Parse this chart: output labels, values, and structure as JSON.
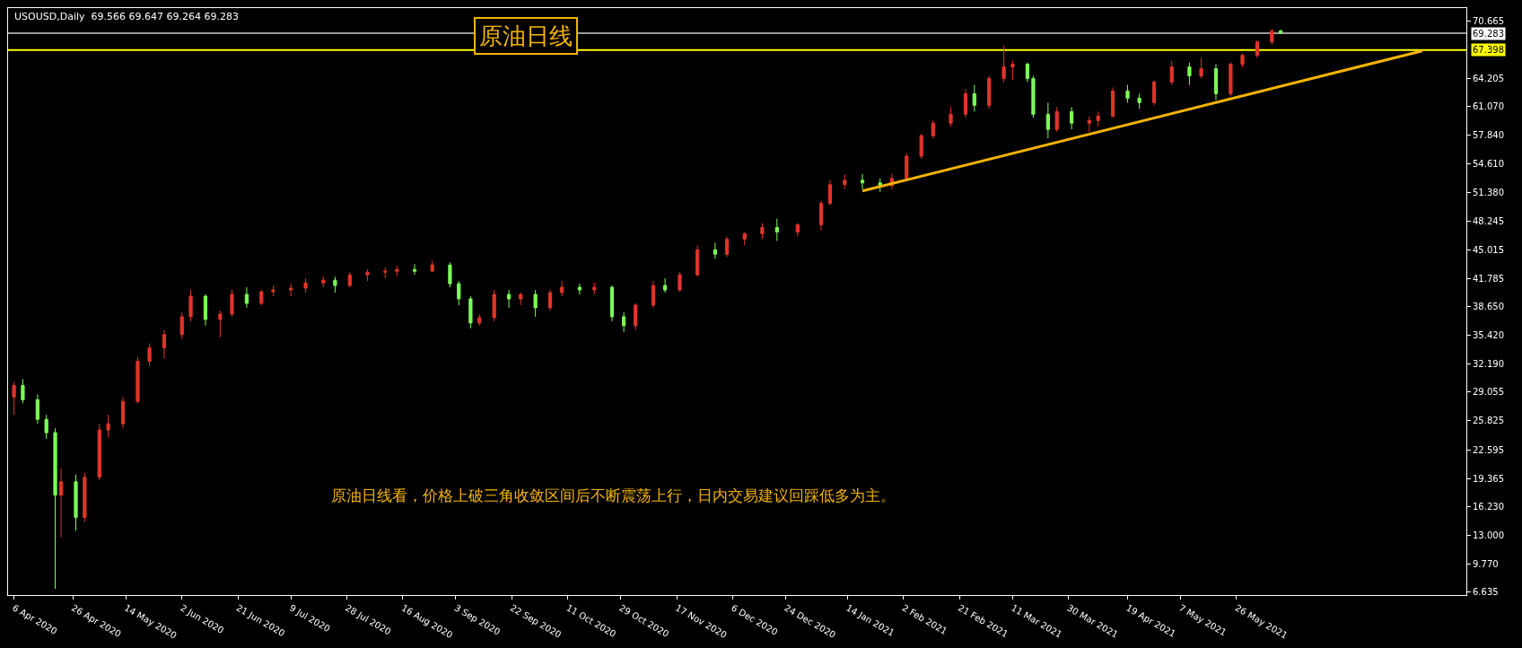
{
  "chart_data": {
    "type": "candlestick",
    "title": "原油日线",
    "subtitle": "USOUSD,Daily  69.566 69.647 69.264 69.283",
    "annotations": [
      "原油日线看，价格上破三角收敛区间后不断震荡上行，日内交易建议回踩低多为主。"
    ],
    "x": [
      "2020-04-06",
      "2020-04-09",
      "2020-04-14",
      "2020-04-17",
      "2020-04-20",
      "2020-04-22",
      "2020-04-27",
      "2020-04-30",
      "2020-05-05",
      "2020-05-08",
      "2020-05-13",
      "2020-05-18",
      "2020-05-22",
      "2020-05-27",
      "2020-06-02",
      "2020-06-05",
      "2020-06-10",
      "2020-06-15",
      "2020-06-19",
      "2020-06-24",
      "2020-06-29",
      "2020-07-03",
      "2020-07-09",
      "2020-07-14",
      "2020-07-20",
      "2020-07-24",
      "2020-07-29",
      "2020-08-04",
      "2020-08-10",
      "2020-08-14",
      "2020-08-20",
      "2020-08-26",
      "2020-09-01",
      "2020-09-04",
      "2020-09-08",
      "2020-09-11",
      "2020-09-16",
      "2020-09-21",
      "2020-09-25",
      "2020-09-30",
      "2020-10-05",
      "2020-10-09",
      "2020-10-15",
      "2020-10-20",
      "2020-10-26",
      "2020-10-30",
      "2020-11-03",
      "2020-11-09",
      "2020-11-13",
      "2020-11-18",
      "2020-11-24",
      "2020-11-30",
      "2020-12-04",
      "2020-12-10",
      "2020-12-16",
      "2020-12-21",
      "2020-12-28",
      "2021-01-05",
      "2021-01-08",
      "2021-01-13",
      "2021-01-19",
      "2021-01-25",
      "2021-01-29",
      "2021-02-03",
      "2021-02-08",
      "2021-02-12",
      "2021-02-18",
      "2021-02-23",
      "2021-02-26",
      "2021-03-03",
      "2021-03-08",
      "2021-03-11",
      "2021-03-16",
      "2021-03-18",
      "2021-03-23",
      "2021-03-26",
      "2021-03-31",
      "2021-04-06",
      "2021-04-09",
      "2021-04-14",
      "2021-04-19",
      "2021-04-23",
      "2021-04-28",
      "2021-05-04",
      "2021-05-10",
      "2021-05-14",
      "2021-05-19",
      "2021-05-24",
      "2021-05-28",
      "2021-06-02",
      "2021-06-07",
      "2021-06-10"
    ],
    "ohlc": [
      [
        28.5,
        30.2,
        26.5,
        29.8
      ],
      [
        29.8,
        30.5,
        27.8,
        28.2
      ],
      [
        28.2,
        28.8,
        25.5,
        26.0
      ],
      [
        26.0,
        26.5,
        23.8,
        24.5
      ],
      [
        24.5,
        25.0,
        7.0,
        17.5
      ],
      [
        17.5,
        20.5,
        12.8,
        19.0
      ],
      [
        19.0,
        19.8,
        13.5,
        15.0
      ],
      [
        15.0,
        20.0,
        14.5,
        19.5
      ],
      [
        19.5,
        25.5,
        19.2,
        24.8
      ],
      [
        24.8,
        26.5,
        24.0,
        25.5
      ],
      [
        25.5,
        28.5,
        25.0,
        28.0
      ],
      [
        28.0,
        33.0,
        27.8,
        32.5
      ],
      [
        32.5,
        34.5,
        32.0,
        34.0
      ],
      [
        34.0,
        36.0,
        32.8,
        35.5
      ],
      [
        35.5,
        38.0,
        35.0,
        37.5
      ],
      [
        37.5,
        40.5,
        37.0,
        39.8
      ],
      [
        39.8,
        40.0,
        36.5,
        37.2
      ],
      [
        37.2,
        38.2,
        35.2,
        37.8
      ],
      [
        37.8,
        40.5,
        37.5,
        40.0
      ],
      [
        40.0,
        40.8,
        38.5,
        39.0
      ],
      [
        39.0,
        40.5,
        38.8,
        40.3
      ],
      [
        40.3,
        41.0,
        39.8,
        40.5
      ],
      [
        40.5,
        41.2,
        39.8,
        40.7
      ],
      [
        40.7,
        41.8,
        40.2,
        41.3
      ],
      [
        41.3,
        42.0,
        40.8,
        41.6
      ],
      [
        41.6,
        42.0,
        40.2,
        41.0
      ],
      [
        41.0,
        42.5,
        40.8,
        42.2
      ],
      [
        42.2,
        42.8,
        41.5,
        42.5
      ],
      [
        42.5,
        43.0,
        41.8,
        42.6
      ],
      [
        42.6,
        43.2,
        42.0,
        42.8
      ],
      [
        42.8,
        43.4,
        42.2,
        42.6
      ],
      [
        42.6,
        43.8,
        42.5,
        43.3
      ],
      [
        43.3,
        43.6,
        40.8,
        41.2
      ],
      [
        41.2,
        41.5,
        38.8,
        39.5
      ],
      [
        39.5,
        39.8,
        36.2,
        36.8
      ],
      [
        36.8,
        37.8,
        36.5,
        37.4
      ],
      [
        37.4,
        40.5,
        37.0,
        40.0
      ],
      [
        40.0,
        40.5,
        38.5,
        39.5
      ],
      [
        39.5,
        40.2,
        38.8,
        40.0
      ],
      [
        40.0,
        40.5,
        37.5,
        38.5
      ],
      [
        38.5,
        40.5,
        38.2,
        40.2
      ],
      [
        40.2,
        41.5,
        39.8,
        40.8
      ],
      [
        40.8,
        41.2,
        40.0,
        40.5
      ],
      [
        40.5,
        41.3,
        40.0,
        40.8
      ],
      [
        40.8,
        41.0,
        37.0,
        37.5
      ],
      [
        37.5,
        38.0,
        35.8,
        36.5
      ],
      [
        36.5,
        39.0,
        36.0,
        38.8
      ],
      [
        38.8,
        41.5,
        38.5,
        41.0
      ],
      [
        41.0,
        41.8,
        40.2,
        40.5
      ],
      [
        40.5,
        42.5,
        40.3,
        42.2
      ],
      [
        42.2,
        45.5,
        42.0,
        45.0
      ],
      [
        45.0,
        45.8,
        44.0,
        44.5
      ],
      [
        44.5,
        46.5,
        44.2,
        46.2
      ],
      [
        46.2,
        47.0,
        45.5,
        46.8
      ],
      [
        46.8,
        48.0,
        46.2,
        47.5
      ],
      [
        47.5,
        48.5,
        46.0,
        47.0
      ],
      [
        47.0,
        48.0,
        46.5,
        47.8
      ],
      [
        47.8,
        50.5,
        47.2,
        50.2
      ],
      [
        50.2,
        52.8,
        50.0,
        52.3
      ],
      [
        52.3,
        53.5,
        51.8,
        52.8
      ],
      [
        52.8,
        53.5,
        51.8,
        52.5
      ],
      [
        52.5,
        53.0,
        51.5,
        52.2
      ],
      [
        52.2,
        53.5,
        51.8,
        53.0
      ],
      [
        53.0,
        55.8,
        52.8,
        55.5
      ],
      [
        55.5,
        58.0,
        55.2,
        57.8
      ],
      [
        57.8,
        59.5,
        57.5,
        59.2
      ],
      [
        59.2,
        61.0,
        58.8,
        60.2
      ],
      [
        60.2,
        63.0,
        59.8,
        62.5
      ],
      [
        62.5,
        63.5,
        60.5,
        61.2
      ],
      [
        61.2,
        64.5,
        60.8,
        64.2
      ],
      [
        64.2,
        67.9,
        63.8,
        65.5
      ],
      [
        65.5,
        66.2,
        64.0,
        65.8
      ],
      [
        65.8,
        66.0,
        63.8,
        64.2
      ],
      [
        64.2,
        64.5,
        59.8,
        60.2
      ],
      [
        60.2,
        61.5,
        57.5,
        58.5
      ],
      [
        58.5,
        61.0,
        58.2,
        60.5
      ],
      [
        60.5,
        61.0,
        58.5,
        59.2
      ],
      [
        59.2,
        60.0,
        58.2,
        59.5
      ],
      [
        59.5,
        60.5,
        58.8,
        60.0
      ],
      [
        60.0,
        63.2,
        59.8,
        62.8
      ],
      [
        62.8,
        63.5,
        61.5,
        62.0
      ],
      [
        62.0,
        62.5,
        60.8,
        61.5
      ],
      [
        61.5,
        64.0,
        61.2,
        63.8
      ],
      [
        63.8,
        66.2,
        63.5,
        65.5
      ],
      [
        65.5,
        66.0,
        63.5,
        64.5
      ],
      [
        64.5,
        66.5,
        64.2,
        65.3
      ],
      [
        65.3,
        65.8,
        61.8,
        62.5
      ],
      [
        62.5,
        66.0,
        62.2,
        65.8
      ],
      [
        65.8,
        67.0,
        65.5,
        66.8
      ],
      [
        66.8,
        68.5,
        66.5,
        68.3
      ],
      [
        68.3,
        69.8,
        68.0,
        69.5
      ],
      [
        69.566,
        69.647,
        69.264,
        69.283
      ]
    ],
    "colors": [
      "#e0352b",
      "#7cfc5a",
      "#7cfc5a",
      "#7cfc5a",
      "#7cfc5a",
      "#e0352b",
      "#7cfc5a",
      "#e0352b",
      "#e0352b",
      "#e0352b",
      "#e0352b",
      "#e0352b",
      "#e0352b",
      "#e0352b",
      "#e0352b",
      "#e0352b",
      "#7cfc5a",
      "#e0352b",
      "#e0352b",
      "#7cfc5a",
      "#e0352b",
      "#e0352b",
      "#e0352b",
      "#e0352b",
      "#e0352b",
      "#7cfc5a",
      "#e0352b",
      "#e0352b",
      "#e0352b",
      "#e0352b",
      "#7cfc5a",
      "#e0352b",
      "#7cfc5a",
      "#7cfc5a",
      "#7cfc5a",
      "#e0352b",
      "#e0352b",
      "#7cfc5a",
      "#e0352b",
      "#7cfc5a",
      "#e0352b",
      "#e0352b",
      "#7cfc5a",
      "#e0352b",
      "#7cfc5a",
      "#7cfc5a",
      "#e0352b",
      "#e0352b",
      "#7cfc5a",
      "#e0352b",
      "#e0352b",
      "#7cfc5a",
      "#e0352b",
      "#e0352b",
      "#e0352b",
      "#7cfc5a",
      "#e0352b",
      "#e0352b",
      "#e0352b",
      "#e0352b",
      "#7cfc5a",
      "#7cfc5a",
      "#e0352b",
      "#e0352b",
      "#e0352b",
      "#e0352b",
      "#e0352b",
      "#e0352b",
      "#7cfc5a",
      "#e0352b",
      "#e0352b",
      "#e0352b",
      "#7cfc5a",
      "#7cfc5a",
      "#7cfc5a",
      "#e0352b",
      "#7cfc5a",
      "#e0352b",
      "#e0352b",
      "#e0352b",
      "#7cfc5a",
      "#7cfc5a",
      "#e0352b",
      "#e0352b",
      "#7cfc5a",
      "#e0352b",
      "#7cfc5a",
      "#e0352b",
      "#e0352b",
      "#e0352b",
      "#e0352b",
      "#7cfc5a"
    ],
    "series": [
      {
        "type": "line",
        "color": "#f5b400",
        "x": [
          "2021-01-19",
          "2021-07-28"
        ],
        "values": [
          51.6,
          67.3
        ]
      }
    ],
    "ref_lines": [
      {
        "axis": "y",
        "value": 67.398,
        "label": "67.398",
        "color": "#ffff00"
      },
      {
        "axis": "y",
        "value": 69.283,
        "label": "69.283",
        "color": "#9a9a9a"
      }
    ],
    "xlim": [
      "2020-04-04",
      "2021-08-12"
    ],
    "ylim": [
      6.3,
      72.1
    ],
    "xticks": [
      {
        "value": "2020-04-06",
        "label": "6 Apr 2020"
      },
      {
        "value": "2020-04-26",
        "label": "26 Apr 2020"
      },
      {
        "value": "2020-05-14",
        "label": "14 May 2020"
      },
      {
        "value": "2020-06-02",
        "label": "2 Jun 2020"
      },
      {
        "value": "2020-06-21",
        "label": "21 Jun 2020"
      },
      {
        "value": "2020-07-09",
        "label": "9 Jul 2020"
      },
      {
        "value": "2020-07-28",
        "label": "28 Jul 2020"
      },
      {
        "value": "2020-08-16",
        "label": "16 Aug 2020"
      },
      {
        "value": "2020-09-03",
        "label": "3 Sep 2020"
      },
      {
        "value": "2020-09-22",
        "label": "22 Sep 2020"
      },
      {
        "value": "2020-10-11",
        "label": "11 Oct 2020"
      },
      {
        "value": "2020-10-29",
        "label": "29 Oct 2020"
      },
      {
        "value": "2020-11-17",
        "label": "17 Nov 2020"
      },
      {
        "value": "2020-12-06",
        "label": "6 Dec 2020"
      },
      {
        "value": "2020-12-24",
        "label": "24 Dec 2020"
      },
      {
        "value": "2021-01-14",
        "label": "14 Jan 2021"
      },
      {
        "value": "2021-02-02",
        "label": "2 Feb 2021"
      },
      {
        "value": "2021-02-21",
        "label": "21 Feb 2021"
      },
      {
        "value": "2021-03-11",
        "label": "11 Mar 2021"
      },
      {
        "value": "2021-03-30",
        "label": "30 Mar 2021"
      },
      {
        "value": "2021-04-19",
        "label": "19 Apr 2021"
      },
      {
        "value": "2021-05-07",
        "label": "7 May 2021"
      },
      {
        "value": "2021-05-26",
        "label": "26 May 2021"
      }
    ],
    "yticks": [
      {
        "value": 70.665,
        "label": "70.665"
      },
      {
        "value": 64.205,
        "label": "64.205"
      },
      {
        "value": 61.07,
        "label": "61.070"
      },
      {
        "value": 57.84,
        "label": "57.840"
      },
      {
        "value": 54.61,
        "label": "54.610"
      },
      {
        "value": 51.38,
        "label": "51.380"
      },
      {
        "value": 48.245,
        "label": "48.245"
      },
      {
        "value": 45.015,
        "label": "45.015"
      },
      {
        "value": 41.785,
        "label": "41.785"
      },
      {
        "value": 38.65,
        "label": "38.650"
      },
      {
        "value": 35.42,
        "label": "35.420"
      },
      {
        "value": 32.19,
        "label": "32.190"
      },
      {
        "value": 29.055,
        "label": "29.055"
      },
      {
        "value": 25.825,
        "label": "25.825"
      },
      {
        "value": 22.595,
        "label": "22.595"
      },
      {
        "value": 19.365,
        "label": "19.365"
      },
      {
        "value": 16.23,
        "label": "16.230"
      },
      {
        "value": 13.0,
        "label": "13.000"
      },
      {
        "value": 9.77,
        "label": "9.770"
      },
      {
        "value": 6.635,
        "label": "6.635"
      }
    ]
  }
}
